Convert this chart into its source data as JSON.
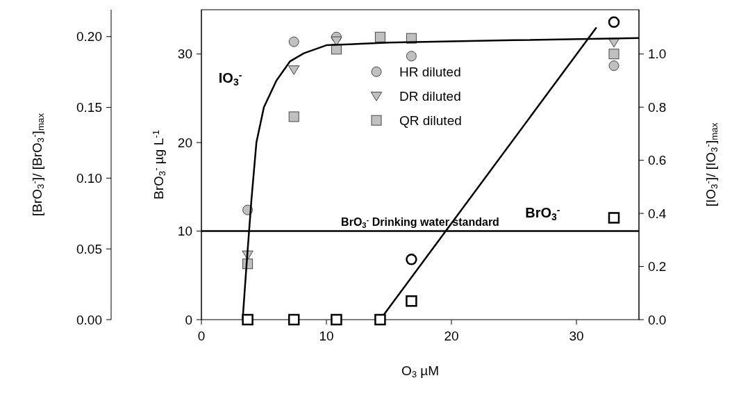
{
  "chart_data": {
    "type": "scatter",
    "xlabel": "O$_{3}$ µM",
    "ylabel": "BrO$_{3}$$^{-}$ µg L$^{-1}$",
    "y2label": "[IO$_{3}$$^{-}$]/ [IO$_{3}$$^{-}$]$_{max}$",
    "y3label": "[BrO$_{3}$$^{-}$]/ [BrO$_{3}$$^{-}$]$_{max}$",
    "xlim": [
      0,
      35
    ],
    "xticks": [
      0,
      10,
      20,
      30
    ],
    "ylim": [
      0,
      35
    ],
    "yticks": [
      0,
      10,
      20,
      30
    ],
    "y2lim": [
      0,
      1.1667
    ],
    "y2ticks": [
      {
        "value": 0,
        "label": "0.0"
      },
      {
        "value": 0.2,
        "label": "0.2"
      },
      {
        "value": 0.4,
        "label": "0.4"
      },
      {
        "value": 0.6,
        "label": "0.6"
      },
      {
        "value": 0.8,
        "label": "0.8"
      },
      {
        "value": 1,
        "label": "1.0"
      }
    ],
    "y3lim": [
      0,
      0.219
    ],
    "y3ticks": [
      {
        "value": 0,
        "label": "0.00"
      },
      {
        "value": 0.05,
        "label": "0.05"
      },
      {
        "value": 0.1,
        "label": "0.10"
      },
      {
        "value": 0.15,
        "label": "0.15"
      },
      {
        "value": 0.2,
        "label": "0.20"
      }
    ],
    "legend": "top",
    "series": [
      {
        "name": "HR diluted",
        "marker": "circle",
        "axis": "y2",
        "color": "#c0c0c0",
        "x": [
          3.7,
          7.4,
          10.8,
          14.3,
          16.8,
          33
        ],
        "values": [
          0.413,
          1.046,
          1.064,
          null,
          0.992,
          0.956
        ]
      },
      {
        "name": "DR diluted",
        "marker": "triangle",
        "axis": "y2",
        "color": "#c0c0c0",
        "x": [
          3.7,
          7.4,
          10.8,
          14.3,
          16.8,
          33
        ],
        "values": [
          0.244,
          0.941,
          1.05,
          null,
          null,
          1.044
        ]
      },
      {
        "name": "QR diluted",
        "marker": "square",
        "axis": "y2",
        "color": "#c0c0c0",
        "x": [
          3.7,
          7.4,
          10.8,
          14.3,
          16.8,
          33
        ],
        "values": [
          0.21,
          0.764,
          1.018,
          1.064,
          1.059,
          1.0
        ]
      },
      {
        "type": "line",
        "marker": "none",
        "axis": "y2",
        "color": "#000000",
        "x": [
          3.3,
          3.6,
          4.0,
          4.4,
          5,
          6,
          7.1,
          8.2,
          10,
          15,
          25,
          35
        ],
        "values": [
          0,
          0.2,
          0.45,
          0.667,
          0.8,
          0.9,
          0.973,
          1.003,
          1.033,
          1.043,
          1.052,
          1.06
        ]
      },
      {
        "type": "line",
        "marker": "none",
        "axis": "y",
        "color": "#000000",
        "x": [
          14.3,
          31.6
        ],
        "values": [
          0,
          33
        ]
      },
      {
        "marker": "circle",
        "axis": "y",
        "color": "#ffffff",
        "x": [
          16.8,
          33
        ],
        "values": [
          6.8,
          33.6
        ]
      },
      {
        "marker": "square",
        "axis": "y",
        "color": "#ffffff",
        "x": [
          3.7,
          7.4,
          10.8,
          14.3,
          16.8,
          33
        ],
        "values": [
          0,
          0,
          0,
          0,
          2.1,
          11.5
        ]
      }
    ],
    "ref_lines": [
      {
        "axis": "y",
        "value": 10,
        "label": "BrO$_{3}$$^{-}$ Drinking water standard",
        "color": "#000000"
      }
    ],
    "annotations": [
      "IO$_{3}$$^{-}$",
      "BrO$_{3}$$^{-}$"
    ]
  }
}
